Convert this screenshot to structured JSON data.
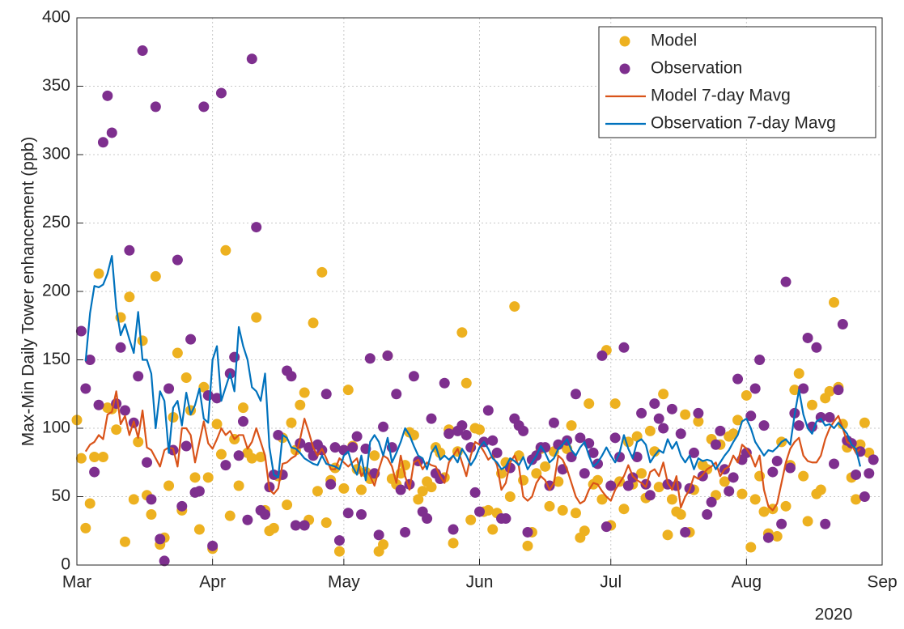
{
  "chart_data": {
    "type": "line",
    "ylabel": "Max-Min Daily Tower enhancement (ppb)",
    "x_secondary_label": "2020",
    "xlim": [
      0,
      184
    ],
    "xticks": [
      {
        "value": 0,
        "label": "Mar"
      },
      {
        "value": 31,
        "label": "Apr"
      },
      {
        "value": 61,
        "label": "May"
      },
      {
        "value": 92,
        "label": "Jun"
      },
      {
        "value": 122,
        "label": "Jul"
      },
      {
        "value": 153,
        "label": "Aug"
      },
      {
        "value": 184,
        "label": "Sep"
      }
    ],
    "ylim": [
      0,
      400
    ],
    "yticks": [
      0,
      50,
      100,
      150,
      200,
      250,
      300,
      350,
      400
    ],
    "grid": true,
    "legend": "upper right",
    "x": [
      0,
      1,
      2,
      3,
      4,
      5,
      6,
      7,
      8,
      9,
      10,
      11,
      12,
      13,
      14,
      15,
      16,
      17,
      18,
      19,
      20,
      21,
      22,
      23,
      24,
      25,
      26,
      27,
      28,
      29,
      30,
      31,
      32,
      33,
      34,
      35,
      36,
      37,
      38,
      39,
      40,
      41,
      42,
      43,
      44,
      45,
      46,
      47,
      48,
      49,
      50,
      51,
      52,
      53,
      54,
      55,
      56,
      57,
      58,
      59,
      60,
      61,
      62,
      63,
      64,
      65,
      66,
      67,
      68,
      69,
      70,
      71,
      72,
      73,
      74,
      75,
      76,
      77,
      78,
      79,
      80,
      81,
      82,
      83,
      84,
      85,
      86,
      87,
      88,
      89,
      90,
      91,
      92,
      93,
      94,
      95,
      96,
      97,
      98,
      99,
      100,
      101,
      102,
      103,
      104,
      105,
      106,
      107,
      108,
      109,
      110,
      111,
      112,
      113,
      114,
      115,
      116,
      117,
      118,
      119,
      120,
      121,
      122,
      123,
      124,
      125,
      126,
      127,
      128,
      129,
      130,
      131,
      132,
      133,
      134,
      135,
      136,
      137,
      138,
      139,
      140,
      141,
      142,
      143,
      144,
      145,
      146,
      147,
      148,
      149,
      150,
      151,
      152,
      153,
      154,
      155,
      156,
      157,
      158,
      159,
      160,
      161,
      162,
      163,
      164,
      165,
      166,
      167,
      168,
      169,
      170,
      171,
      172,
      173,
      174,
      175,
      176,
      177,
      178,
      179,
      180,
      181,
      182
    ],
    "series": [
      {
        "name": "Model",
        "mode": "markers",
        "color": "#EDB120",
        "values": [
          106,
          78,
          27,
          45,
          79,
          213,
          79,
          115,
          114,
          99,
          181,
          17,
          196,
          48,
          90,
          164,
          51,
          37,
          211,
          15,
          20,
          58,
          108,
          155,
          40,
          137,
          113,
          64,
          26,
          130,
          64,
          12,
          103,
          81,
          230,
          36,
          92,
          58,
          115,
          82,
          78,
          181,
          79,
          40,
          25,
          27,
          65,
          93,
          44,
          104,
          84,
          117,
          126,
          33,
          177,
          54,
          214,
          31,
          62,
          71,
          10,
          56,
          128,
          87,
          70,
          55,
          68,
          63,
          80,
          10,
          15,
          153,
          63,
          59,
          67,
          73,
          97,
          95,
          48,
          54,
          61,
          57,
          86,
          82,
          64,
          99,
          16,
          83,
          170,
          133,
          33,
          100,
          99,
          39,
          40,
          26,
          38,
          67,
          75,
          50,
          189,
          80,
          62,
          14,
          24,
          67,
          85,
          72,
          43,
          83,
          61,
          40,
          85,
          102,
          38,
          20,
          25,
          118,
          59,
          62,
          48,
          157,
          29,
          118,
          61,
          41,
          90,
          59,
          94,
          67,
          49,
          98,
          83,
          57,
          125,
          22,
          48,
          39,
          37,
          110,
          24,
          55,
          105,
          73,
          70,
          92,
          51,
          88,
          61,
          94,
          96,
          106,
          52,
          124,
          13,
          48,
          65,
          39,
          23,
          41,
          21,
          90,
          43,
          73,
          128,
          140,
          65,
          32,
          117,
          52,
          55,
          122,
          127,
          192,
          130,
          103,
          86,
          64,
          48,
          88,
          104,
          82,
          null
        ]
      },
      {
        "name": "Observation",
        "mode": "markers",
        "color": "#7E2F8E",
        "values": [
          null,
          171,
          129,
          150,
          68,
          117,
          309,
          343,
          316,
          118,
          159,
          113,
          230,
          104,
          138,
          376,
          75,
          48,
          335,
          19,
          3,
          129,
          84,
          223,
          43,
          87,
          165,
          53,
          54,
          335,
          124,
          14,
          122,
          345,
          73,
          140,
          152,
          80,
          105,
          33,
          370,
          247,
          40,
          37,
          57,
          66,
          95,
          66,
          142,
          138,
          29,
          89,
          29,
          86,
          80,
          88,
          84,
          125,
          59,
          86,
          18,
          84,
          38,
          86,
          94,
          37,
          85,
          151,
          67,
          22,
          101,
          153,
          86,
          125,
          55,
          24,
          59,
          138,
          76,
          39,
          34,
          107,
          67,
          63,
          133,
          96,
          26,
          98,
          102,
          95,
          86,
          53,
          39,
          90,
          113,
          91,
          82,
          34,
          34,
          71,
          107,
          102,
          98,
          24,
          77,
          80,
          86,
          86,
          58,
          104,
          88,
          70,
          91,
          79,
          125,
          93,
          67,
          89,
          82,
          74,
          153,
          28,
          58,
          93,
          79,
          159,
          58,
          64,
          79,
          111,
          59,
          51,
          118,
          107,
          100,
          59,
          114,
          58,
          96,
          24,
          56,
          82,
          111,
          65,
          37,
          46,
          88,
          98,
          70,
          54,
          64,
          136,
          77,
          82,
          109,
          129,
          150,
          102,
          20,
          68,
          76,
          30,
          207,
          71,
          111,
          102,
          129,
          166,
          101,
          159,
          108,
          30,
          108,
          74,
          128,
          176,
          91,
          89,
          66,
          83,
          50,
          67,
          77
        ]
      },
      {
        "name": "Model 7-day Mavg",
        "mode": "lines",
        "color": "#D95319",
        "values": [
          null,
          null,
          83,
          88,
          90,
          95,
          92,
          110,
          112,
          127,
          103,
          109,
          95,
          105,
          93,
          113,
          86,
          84,
          78,
          72,
          84,
          86,
          85,
          72,
          100,
          100,
          95,
          75,
          90,
          105,
          89,
          85,
          92,
          100,
          95,
          98,
          92,
          95,
          95,
          85,
          90,
          100,
          90,
          80,
          55,
          52,
          56,
          74,
          75,
          78,
          80,
          92,
          107,
          97,
          86,
          80,
          85,
          78,
          70,
          70,
          78,
          75,
          72,
          75,
          78,
          65,
          70,
          65,
          58,
          70,
          80,
          78,
          72,
          60,
          80,
          65,
          55,
          75,
          77,
          70,
          75,
          73,
          72,
          65,
          60,
          75,
          80,
          85,
          75,
          65,
          80,
          90,
          88,
          83,
          77,
          80,
          73,
          55,
          60,
          75,
          80,
          72,
          50,
          47,
          50,
          60,
          65,
          62,
          55,
          60,
          80,
          77,
          70,
          60,
          50,
          45,
          47,
          55,
          60,
          59,
          54,
          50,
          47,
          55,
          60,
          65,
          73,
          65,
          62,
          60,
          57,
          68,
          70,
          65,
          75,
          60,
          55,
          65,
          42,
          50,
          55,
          65,
          63,
          66,
          70,
          72,
          75,
          65,
          70,
          72,
          80,
          75,
          88,
          85,
          80,
          72,
          80,
          55,
          43,
          40,
          45,
          60,
          75,
          85,
          90,
          93,
          80,
          76,
          75,
          75,
          80,
          92,
          100,
          105,
          109,
          100,
          90,
          88,
          82,
          85,
          null,
          null,
          null
        ]
      },
      {
        "name": "Observation 7-day Mavg",
        "mode": "lines",
        "color": "#0072BD",
        "values": [
          null,
          null,
          149,
          184,
          204,
          203,
          205,
          213,
          226,
          188,
          168,
          176,
          165,
          155,
          185,
          150,
          150,
          140,
          100,
          127,
          120,
          82,
          115,
          120,
          102,
          126,
          110,
          117,
          129,
          107,
          104,
          150,
          160,
          120,
          130,
          140,
          127,
          174,
          160,
          150,
          130,
          127,
          120,
          140,
          86,
          66,
          64,
          95,
          93,
          86,
          85,
          82,
          78,
          76,
          74,
          73,
          80,
          74,
          73,
          72,
          70,
          80,
          83,
          72,
          66,
          80,
          62,
          90,
          95,
          90,
          80,
          93,
          75,
          82,
          90,
          100,
          95,
          87,
          80,
          78,
          70,
          82,
          87,
          77,
          80,
          77,
          80,
          75,
          85,
          80,
          73,
          78,
          86,
          90,
          85,
          78,
          75,
          70,
          72,
          78,
          76,
          73,
          79,
          70,
          75,
          80,
          87,
          82,
          75,
          78,
          85,
          88,
          92,
          84,
          80,
          86,
          90,
          80,
          72,
          75,
          80,
          86,
          80,
          75,
          82,
          95,
          85,
          78,
          90,
          92,
          88,
          75,
          80,
          84,
          82,
          92,
          85,
          90,
          80,
          75,
          80,
          70,
          78,
          76,
          77,
          76,
          70,
          75,
          80,
          84,
          90,
          95,
          105,
          107,
          100,
          90,
          85,
          80,
          84,
          83,
          86,
          90,
          92,
          88,
          110,
          128,
          110,
          100,
          96,
          105,
          107,
          102,
          103,
          100,
          104,
          100,
          96,
          88,
          85,
          72,
          null,
          null,
          null
        ]
      }
    ]
  }
}
